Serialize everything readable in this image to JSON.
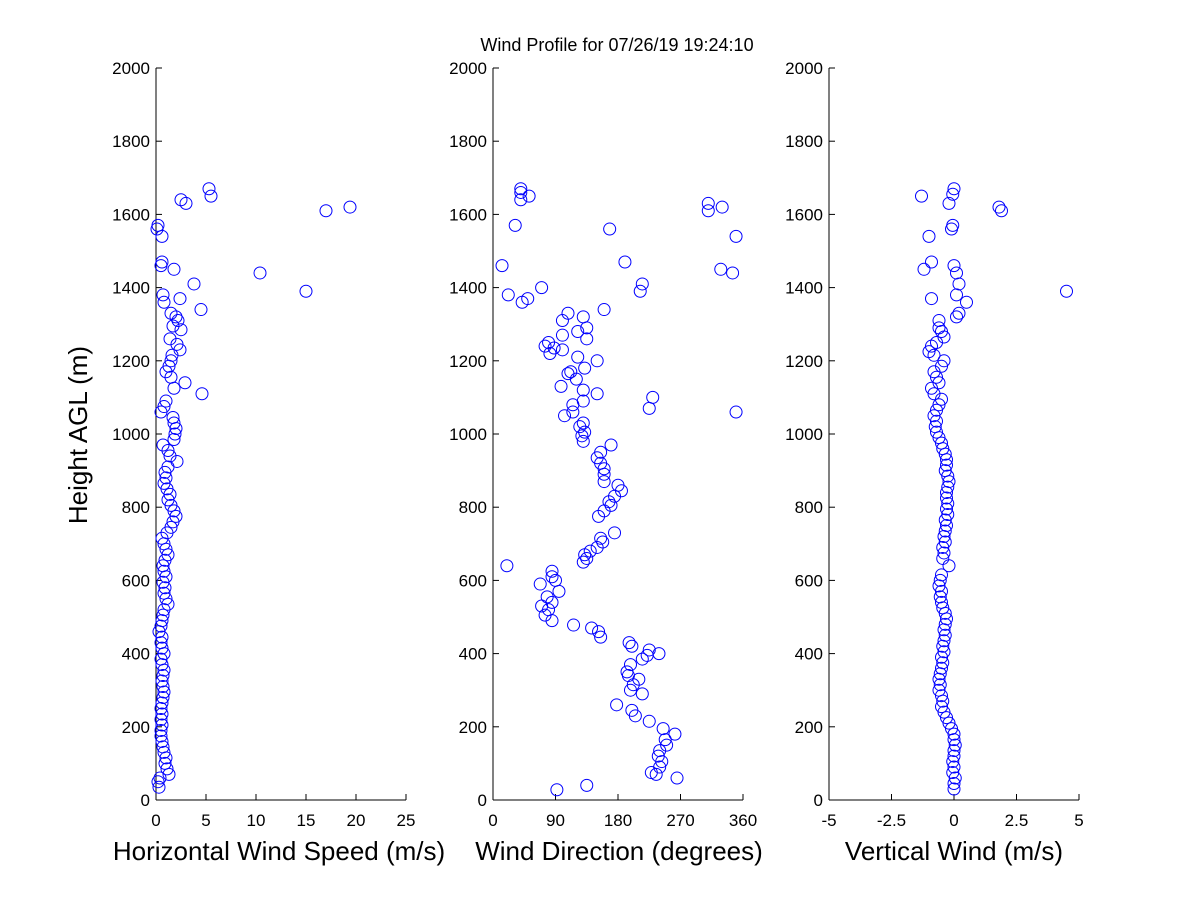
{
  "title": "Wind Profile for  07/26/19 19:24:10",
  "colors": {
    "marker": "#0000ff",
    "axis": "#000000",
    "background": "#ffffff"
  },
  "chart_data": [
    {
      "type": "scatter",
      "name": "horizontal-wind-speed",
      "xlabel": "Horizontal Wind Speed (m/s)",
      "ylabel": "Height AGL (m)",
      "xlim": [
        0,
        25
      ],
      "ylim": [
        0,
        2000
      ],
      "xticks": [
        "0",
        "5",
        "10",
        "15",
        "20",
        "25"
      ],
      "yticks": [
        "0",
        "200",
        "400",
        "600",
        "800",
        "1000",
        "1200",
        "1400",
        "1600",
        "1800",
        "2000"
      ],
      "grid": false,
      "points": [
        [
          0.3,
          35
        ],
        [
          0.2,
          50
        ],
        [
          0.4,
          60
        ],
        [
          1.3,
          70
        ],
        [
          1.1,
          85
        ],
        [
          0.9,
          100
        ],
        [
          1.0,
          115
        ],
        [
          0.8,
          130
        ],
        [
          0.7,
          145
        ],
        [
          0.6,
          160
        ],
        [
          0.5,
          175
        ],
        [
          0.5,
          190
        ],
        [
          0.6,
          205
        ],
        [
          0.5,
          220
        ],
        [
          0.6,
          235
        ],
        [
          0.5,
          250
        ],
        [
          0.6,
          265
        ],
        [
          0.7,
          280
        ],
        [
          0.8,
          295
        ],
        [
          0.7,
          310
        ],
        [
          0.6,
          325
        ],
        [
          0.7,
          340
        ],
        [
          0.8,
          355
        ],
        [
          0.6,
          370
        ],
        [
          0.5,
          385
        ],
        [
          0.8,
          400
        ],
        [
          0.6,
          415
        ],
        [
          0.5,
          430
        ],
        [
          0.6,
          445
        ],
        [
          0.3,
          460
        ],
        [
          0.5,
          475
        ],
        [
          0.6,
          490
        ],
        [
          0.7,
          505
        ],
        [
          0.8,
          520
        ],
        [
          1.2,
          535
        ],
        [
          1.0,
          550
        ],
        [
          0.8,
          565
        ],
        [
          0.9,
          580
        ],
        [
          0.7,
          595
        ],
        [
          1.0,
          610
        ],
        [
          0.8,
          625
        ],
        [
          0.7,
          640
        ],
        [
          0.9,
          655
        ],
        [
          1.2,
          670
        ],
        [
          1.0,
          685
        ],
        [
          0.8,
          700
        ],
        [
          0.6,
          715
        ],
        [
          1.1,
          730
        ],
        [
          1.5,
          745
        ],
        [
          1.7,
          760
        ],
        [
          2.0,
          775
        ],
        [
          1.8,
          790
        ],
        [
          1.5,
          805
        ],
        [
          1.2,
          820
        ],
        [
          1.4,
          835
        ],
        [
          1.1,
          850
        ],
        [
          0.8,
          865
        ],
        [
          1.0,
          880
        ],
        [
          0.9,
          895
        ],
        [
          1.2,
          910
        ],
        [
          2.1,
          925
        ],
        [
          1.4,
          940
        ],
        [
          1.2,
          955
        ],
        [
          0.7,
          970
        ],
        [
          1.8,
          985
        ],
        [
          1.9,
          1000
        ],
        [
          2.0,
          1015
        ],
        [
          1.8,
          1030
        ],
        [
          1.7,
          1045
        ],
        [
          0.5,
          1060
        ],
        [
          0.8,
          1075
        ],
        [
          1.0,
          1090
        ],
        [
          4.6,
          1110
        ],
        [
          1.8,
          1125
        ],
        [
          2.9,
          1140
        ],
        [
          1.5,
          1155
        ],
        [
          1.0,
          1170
        ],
        [
          1.3,
          1185
        ],
        [
          1.5,
          1200
        ],
        [
          1.6,
          1215
        ],
        [
          2.4,
          1230
        ],
        [
          2.1,
          1245
        ],
        [
          1.4,
          1260
        ],
        [
          2.5,
          1285
        ],
        [
          1.7,
          1295
        ],
        [
          2.2,
          1310
        ],
        [
          2.0,
          1320
        ],
        [
          1.5,
          1330
        ],
        [
          4.5,
          1340
        ],
        [
          0.8,
          1360
        ],
        [
          2.4,
          1370
        ],
        [
          0.7,
          1380
        ],
        [
          15.0,
          1390
        ],
        [
          3.8,
          1410
        ],
        [
          10.4,
          1440
        ],
        [
          1.8,
          1450
        ],
        [
          0.5,
          1460
        ],
        [
          0.6,
          1470
        ],
        [
          0.6,
          1540
        ],
        [
          0.1,
          1560
        ],
        [
          0.2,
          1570
        ],
        [
          17.0,
          1610
        ],
        [
          19.4,
          1620
        ],
        [
          3.0,
          1630
        ],
        [
          2.5,
          1640
        ],
        [
          5.5,
          1650
        ],
        [
          5.3,
          1670
        ]
      ]
    },
    {
      "type": "scatter",
      "name": "wind-direction",
      "xlabel": "Wind Direction (degrees)",
      "ylabel": "",
      "xlim": [
        0,
        360
      ],
      "ylim": [
        0,
        2000
      ],
      "xticks": [
        "0",
        "90",
        "180",
        "270",
        "360"
      ],
      "yticks": [
        "0",
        "200",
        "400",
        "600",
        "800",
        "1000",
        "1200",
        "1400",
        "1600",
        "1800",
        "2000"
      ],
      "grid": false,
      "points": [
        [
          92,
          28
        ],
        [
          135,
          40
        ],
        [
          265,
          60
        ],
        [
          235,
          70
        ],
        [
          228,
          75
        ],
        [
          240,
          90
        ],
        [
          243,
          105
        ],
        [
          238,
          120
        ],
        [
          240,
          135
        ],
        [
          250,
          150
        ],
        [
          248,
          165
        ],
        [
          262,
          180
        ],
        [
          245,
          195
        ],
        [
          225,
          215
        ],
        [
          205,
          230
        ],
        [
          200,
          245
        ],
        [
          178,
          260
        ],
        [
          215,
          290
        ],
        [
          198,
          300
        ],
        [
          202,
          315
        ],
        [
          210,
          330
        ],
        [
          195,
          340
        ],
        [
          193,
          350
        ],
        [
          198,
          370
        ],
        [
          215,
          385
        ],
        [
          222,
          395
        ],
        [
          239,
          400
        ],
        [
          225,
          410
        ],
        [
          200,
          420
        ],
        [
          196,
          430
        ],
        [
          155,
          445
        ],
        [
          152,
          460
        ],
        [
          142,
          470
        ],
        [
          116,
          478
        ],
        [
          85,
          490
        ],
        [
          75,
          505
        ],
        [
          80,
          520
        ],
        [
          70,
          530
        ],
        [
          85,
          540
        ],
        [
          78,
          555
        ],
        [
          95,
          570
        ],
        [
          68,
          590
        ],
        [
          90,
          600
        ],
        [
          85,
          610
        ],
        [
          85,
          625
        ],
        [
          20,
          640
        ],
        [
          130,
          650
        ],
        [
          135,
          660
        ],
        [
          132,
          670
        ],
        [
          140,
          680
        ],
        [
          150,
          690
        ],
        [
          158,
          705
        ],
        [
          155,
          715
        ],
        [
          175,
          730
        ],
        [
          152,
          775
        ],
        [
          160,
          790
        ],
        [
          170,
          805
        ],
        [
          167,
          815
        ],
        [
          175,
          830
        ],
        [
          185,
          845
        ],
        [
          180,
          860
        ],
        [
          160,
          870
        ],
        [
          160,
          890
        ],
        [
          160,
          905
        ],
        [
          155,
          920
        ],
        [
          150,
          935
        ],
        [
          155,
          950
        ],
        [
          170,
          970
        ],
        [
          130,
          980
        ],
        [
          128,
          995
        ],
        [
          132,
          1005
        ],
        [
          125,
          1020
        ],
        [
          130,
          1030
        ],
        [
          103,
          1050
        ],
        [
          115,
          1060
        ],
        [
          225,
          1070
        ],
        [
          115,
          1080
        ],
        [
          350,
          1060
        ],
        [
          130,
          1090
        ],
        [
          150,
          1110
        ],
        [
          230,
          1100
        ],
        [
          98,
          1130
        ],
        [
          130,
          1120
        ],
        [
          120,
          1150
        ],
        [
          108,
          1165
        ],
        [
          112,
          1170
        ],
        [
          132,
          1180
        ],
        [
          150,
          1200
        ],
        [
          122,
          1210
        ],
        [
          82,
          1220
        ],
        [
          88,
          1235
        ],
        [
          100,
          1230
        ],
        [
          75,
          1240
        ],
        [
          80,
          1250
        ],
        [
          135,
          1260
        ],
        [
          100,
          1270
        ],
        [
          122,
          1280
        ],
        [
          135,
          1290
        ],
        [
          100,
          1310
        ],
        [
          130,
          1320
        ],
        [
          108,
          1330
        ],
        [
          160,
          1340
        ],
        [
          50,
          1370
        ],
        [
          42,
          1360
        ],
        [
          22,
          1380
        ],
        [
          212,
          1390
        ],
        [
          215,
          1410
        ],
        [
          70,
          1400
        ],
        [
          13,
          1460
        ],
        [
          190,
          1470
        ],
        [
          328,
          1450
        ],
        [
          345,
          1440
        ],
        [
          168,
          1560
        ],
        [
          32,
          1570
        ],
        [
          350,
          1540
        ],
        [
          310,
          1630
        ],
        [
          310,
          1610
        ],
        [
          330,
          1620
        ],
        [
          40,
          1640
        ],
        [
          52,
          1650
        ],
        [
          40,
          1660
        ],
        [
          40,
          1670
        ]
      ]
    },
    {
      "type": "scatter",
      "name": "vertical-wind",
      "xlabel": "Vertical Wind (m/s)",
      "ylabel": "",
      "xlim": [
        -5,
        5
      ],
      "ylim": [
        0,
        2000
      ],
      "xticks": [
        "-5",
        "-2.5",
        "0",
        "2.5",
        "5"
      ],
      "yticks": [
        "0",
        "200",
        "400",
        "600",
        "800",
        "1000",
        "1200",
        "1400",
        "1600",
        "1800",
        "2000"
      ],
      "grid": false,
      "points": [
        [
          0.0,
          30
        ],
        [
          0.0,
          45
        ],
        [
          0.05,
          60
        ],
        [
          -0.05,
          75
        ],
        [
          0.0,
          90
        ],
        [
          -0.05,
          105
        ],
        [
          0.0,
          120
        ],
        [
          0.0,
          135
        ],
        [
          0.05,
          150
        ],
        [
          0.0,
          165
        ],
        [
          0.0,
          180
        ],
        [
          -0.1,
          195
        ],
        [
          -0.2,
          210
        ],
        [
          -0.3,
          225
        ],
        [
          -0.4,
          240
        ],
        [
          -0.5,
          255
        ],
        [
          -0.45,
          270
        ],
        [
          -0.5,
          285
        ],
        [
          -0.6,
          300
        ],
        [
          -0.55,
          315
        ],
        [
          -0.6,
          330
        ],
        [
          -0.55,
          345
        ],
        [
          -0.5,
          360
        ],
        [
          -0.45,
          375
        ],
        [
          -0.5,
          390
        ],
        [
          -0.4,
          405
        ],
        [
          -0.45,
          420
        ],
        [
          -0.4,
          435
        ],
        [
          -0.35,
          450
        ],
        [
          -0.4,
          465
        ],
        [
          -0.35,
          480
        ],
        [
          -0.3,
          495
        ],
        [
          -0.35,
          510
        ],
        [
          -0.45,
          525
        ],
        [
          -0.5,
          540
        ],
        [
          -0.55,
          555
        ],
        [
          -0.5,
          570
        ],
        [
          -0.6,
          585
        ],
        [
          -0.55,
          600
        ],
        [
          -0.5,
          615
        ],
        [
          -0.2,
          640
        ],
        [
          -0.45,
          660
        ],
        [
          -0.4,
          675
        ],
        [
          -0.45,
          690
        ],
        [
          -0.35,
          705
        ],
        [
          -0.4,
          720
        ],
        [
          -0.35,
          735
        ],
        [
          -0.3,
          750
        ],
        [
          -0.35,
          765
        ],
        [
          -0.25,
          780
        ],
        [
          -0.3,
          795
        ],
        [
          -0.25,
          810
        ],
        [
          -0.3,
          825
        ],
        [
          -0.3,
          840
        ],
        [
          -0.25,
          855
        ],
        [
          -0.2,
          870
        ],
        [
          -0.25,
          885
        ],
        [
          -0.35,
          900
        ],
        [
          -0.3,
          915
        ],
        [
          -0.3,
          930
        ],
        [
          -0.35,
          945
        ],
        [
          -0.45,
          960
        ],
        [
          -0.5,
          975
        ],
        [
          -0.6,
          990
        ],
        [
          -0.7,
          1005
        ],
        [
          -0.75,
          1020
        ],
        [
          -0.7,
          1035
        ],
        [
          -0.8,
          1050
        ],
        [
          -0.7,
          1065
        ],
        [
          -0.6,
          1080
        ],
        [
          -0.5,
          1095
        ],
        [
          -0.8,
          1110
        ],
        [
          -0.9,
          1125
        ],
        [
          -0.6,
          1140
        ],
        [
          -0.7,
          1155
        ],
        [
          -0.8,
          1170
        ],
        [
          -0.5,
          1185
        ],
        [
          -0.4,
          1200
        ],
        [
          -0.8,
          1215
        ],
        [
          -1.0,
          1225
        ],
        [
          -0.9,
          1240
        ],
        [
          -0.7,
          1250
        ],
        [
          -0.4,
          1265
        ],
        [
          -0.5,
          1280
        ],
        [
          -0.6,
          1290
        ],
        [
          -0.6,
          1310
        ],
        [
          0.1,
          1320
        ],
        [
          0.2,
          1330
        ],
        [
          0.5,
          1360
        ],
        [
          -0.9,
          1370
        ],
        [
          0.1,
          1380
        ],
        [
          4.5,
          1390
        ],
        [
          0.2,
          1410
        ],
        [
          0.1,
          1440
        ],
        [
          -1.2,
          1450
        ],
        [
          0.0,
          1460
        ],
        [
          -0.9,
          1470
        ],
        [
          -1.0,
          1540
        ],
        [
          -0.1,
          1560
        ],
        [
          -0.05,
          1570
        ],
        [
          1.9,
          1610
        ],
        [
          1.8,
          1620
        ],
        [
          -0.2,
          1630
        ],
        [
          -1.3,
          1650
        ],
        [
          -0.05,
          1655
        ],
        [
          0.0,
          1670
        ]
      ]
    }
  ]
}
